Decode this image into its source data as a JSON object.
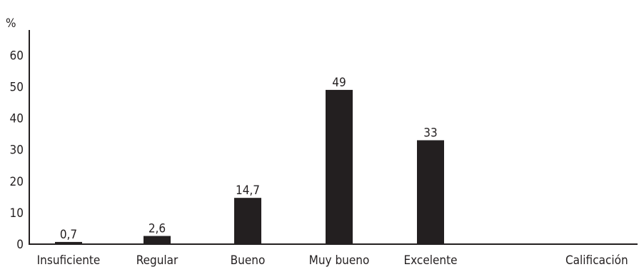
{
  "chart_data": {
    "type": "bar",
    "title": "",
    "xlabel": "Calificación",
    "ylabel": "%",
    "categories": [
      "Insuficiente",
      "Regular",
      "Bueno",
      "Muy bueno",
      "Excelente"
    ],
    "values": [
      0.7,
      2.6,
      14.7,
      49,
      33
    ],
    "value_labels": [
      "0,7",
      "2,6",
      "14,7",
      "49",
      "33"
    ],
    "ylim": [
      0,
      60
    ],
    "yticks": [
      0,
      10,
      20,
      30,
      40,
      50,
      60
    ],
    "grid": false,
    "legend": "none",
    "colors": {
      "bar": "#231f20",
      "axis": "#231f20",
      "text": "#231f20"
    }
  }
}
